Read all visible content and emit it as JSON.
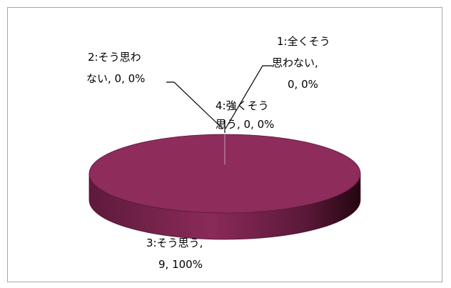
{
  "chart_data": {
    "type": "pie",
    "style": "3d",
    "categories": [
      "1:全くそう思わない",
      "2:そう思わない",
      "3:そう思う",
      "4:強くそう思う"
    ],
    "values": [
      0,
      0,
      9,
      0
    ],
    "percentages": [
      0,
      0,
      100,
      0
    ],
    "data_labels": [
      [
        "1:全くそう",
        "思わない,",
        "0, 0%"
      ],
      [
        "2:そう思わ",
        "ない, 0, 0%"
      ],
      [
        "3:そう思う,",
        "9, 100%"
      ],
      [
        "4:強くそう",
        "思う, 0, 0%"
      ]
    ],
    "colors": {
      "pie_top": "#8e2c5c",
      "pie_side_light": "#7a244e",
      "pie_side_dark": "#2a0a1a",
      "leader_line": "#000000"
    },
    "legend": "none",
    "grid": false
  }
}
